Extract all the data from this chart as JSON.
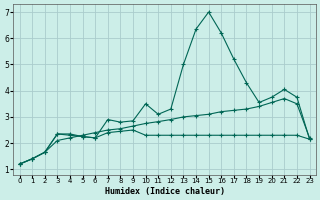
{
  "xlabel": "Humidex (Indice chaleur)",
  "bg_color": "#cceee8",
  "grid_color": "#aacccc",
  "line_color": "#006655",
  "xlim": [
    -0.5,
    23.5
  ],
  "ylim": [
    0.8,
    7.3
  ],
  "xticks": [
    0,
    1,
    2,
    3,
    4,
    5,
    6,
    7,
    8,
    9,
    10,
    11,
    12,
    13,
    14,
    15,
    16,
    17,
    18,
    19,
    20,
    21,
    22,
    23
  ],
  "yticks": [
    1,
    2,
    3,
    4,
    5,
    6,
    7
  ],
  "line1_x": [
    0,
    1,
    2,
    3,
    4,
    5,
    6,
    7,
    8,
    9,
    10,
    11,
    12,
    13,
    14,
    15,
    16,
    17,
    18,
    19,
    20,
    21,
    22,
    23
  ],
  "line1_y": [
    1.2,
    1.4,
    1.65,
    2.35,
    2.35,
    2.25,
    2.2,
    2.9,
    2.8,
    2.85,
    3.5,
    3.1,
    3.3,
    5.0,
    6.35,
    7.0,
    6.2,
    5.2,
    4.3,
    3.55,
    3.75,
    4.05,
    3.75,
    2.15
  ],
  "line2_x": [
    0,
    1,
    2,
    3,
    4,
    5,
    6,
    7,
    8,
    9,
    10,
    11,
    12,
    13,
    14,
    15,
    16,
    17,
    18,
    19,
    20,
    21,
    22,
    23
  ],
  "line2_y": [
    1.2,
    1.4,
    1.65,
    2.35,
    2.3,
    2.25,
    2.2,
    2.4,
    2.45,
    2.5,
    2.3,
    2.3,
    2.3,
    2.3,
    2.3,
    2.3,
    2.3,
    2.3,
    2.3,
    2.3,
    2.3,
    2.3,
    2.3,
    2.15
  ],
  "line3_x": [
    0,
    1,
    2,
    3,
    4,
    5,
    6,
    7,
    8,
    9,
    10,
    11,
    12,
    13,
    14,
    15,
    16,
    17,
    18,
    19,
    20,
    21,
    22,
    23
  ],
  "line3_y": [
    1.2,
    1.4,
    1.65,
    2.1,
    2.2,
    2.3,
    2.4,
    2.5,
    2.55,
    2.65,
    2.75,
    2.82,
    2.9,
    3.0,
    3.05,
    3.1,
    3.2,
    3.25,
    3.3,
    3.4,
    3.55,
    3.7,
    3.5,
    2.2
  ]
}
